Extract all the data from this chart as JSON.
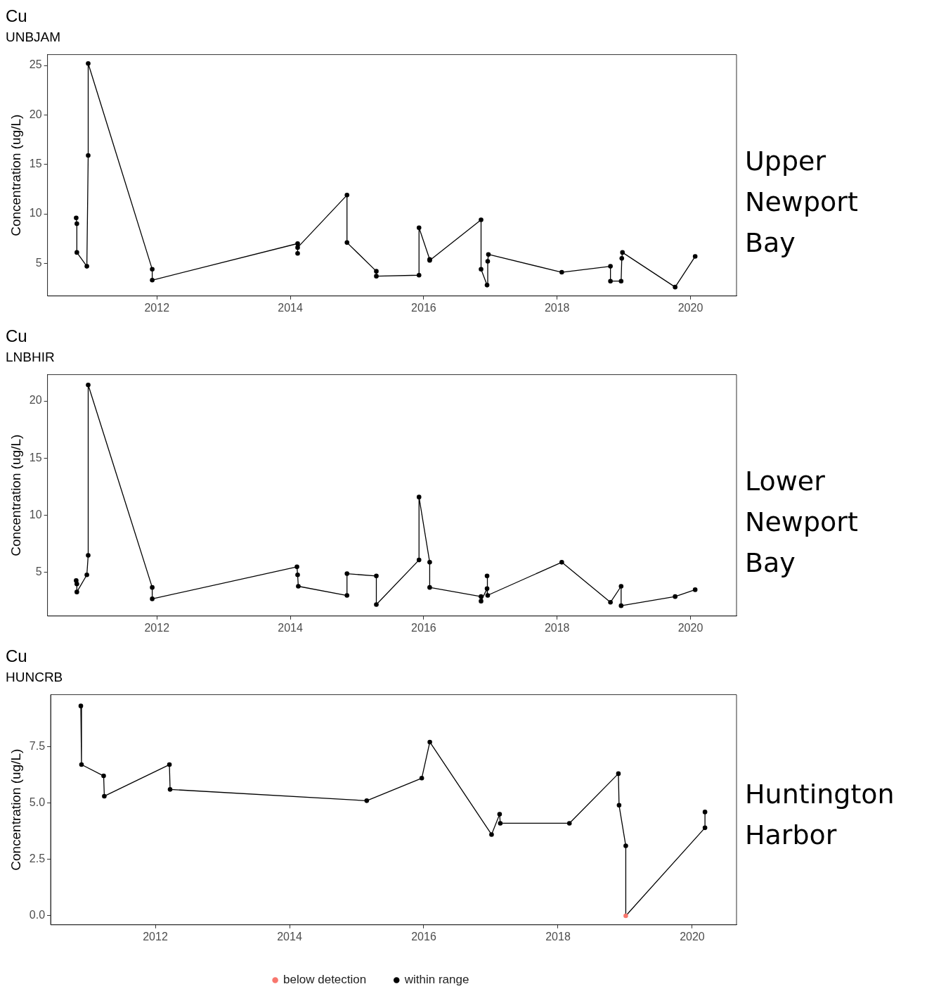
{
  "chart_data": [
    {
      "type": "line",
      "title": "Cu",
      "subtitle": "UNBJAM",
      "ylabel": "Concentration (ug/L)",
      "annotations": [
        "Upper Newport Bay"
      ],
      "xlim": [
        2010.36,
        2020.69
      ],
      "xticks": [
        2012,
        2014,
        2016,
        2018,
        2020
      ],
      "ylim": [
        1.7,
        26.1
      ],
      "yticks": [
        5,
        10,
        15,
        20,
        25
      ],
      "legend": false,
      "series": [
        {
          "type": "line",
          "color": "#000000",
          "marker": "none",
          "x": [
            2010.79,
            2010.8,
            2010.8,
            2010.95,
            2010.97,
            2010.97,
            2011.93,
            2011.93,
            2014.11,
            2014.11,
            2014.11,
            2014.85,
            2014.85,
            2015.29,
            2015.29,
            2015.93,
            2015.93,
            2016.09,
            2016.09,
            2016.86,
            2016.86,
            2016.95,
            2016.96,
            2016.97,
            2018.07,
            2018.8,
            2018.8,
            2018.96,
            2018.97,
            2018.98,
            2019.77,
            2020.07
          ],
          "values": [
            9.6,
            9.0,
            6.1,
            4.7,
            15.9,
            25.2,
            4.4,
            3.3,
            7.0,
            6.0,
            6.6,
            11.9,
            7.1,
            4.2,
            3.7,
            3.8,
            8.6,
            5.4,
            5.3,
            9.4,
            4.4,
            2.8,
            5.2,
            5.9,
            4.1,
            4.7,
            3.2,
            3.2,
            5.5,
            6.1,
            2.6,
            5.7
          ]
        },
        {
          "type": "scatter",
          "color": "#000000",
          "marker": "circle",
          "x": [
            2010.79,
            2010.8,
            2010.8,
            2010.95,
            2010.97,
            2010.97,
            2011.93,
            2011.93,
            2014.11,
            2014.11,
            2014.11,
            2014.85,
            2014.85,
            2015.29,
            2015.29,
            2015.93,
            2015.93,
            2016.09,
            2016.09,
            2016.86,
            2016.86,
            2016.95,
            2016.96,
            2016.97,
            2018.07,
            2018.8,
            2018.8,
            2018.96,
            2018.97,
            2018.98,
            2019.77,
            2020.07
          ],
          "values": [
            9.6,
            9.0,
            6.1,
            4.7,
            15.9,
            25.2,
            4.4,
            3.3,
            7.0,
            6.0,
            6.6,
            11.9,
            7.1,
            4.2,
            3.7,
            3.8,
            8.6,
            5.4,
            5.3,
            9.4,
            4.4,
            2.8,
            5.2,
            5.9,
            4.1,
            4.7,
            3.2,
            3.2,
            5.5,
            6.1,
            2.6,
            5.7
          ]
        }
      ]
    },
    {
      "type": "line",
      "title": "Cu",
      "subtitle": "LNBHIR",
      "ylabel": "Concentration (ug/L)",
      "annotations": [
        "Lower Newport Bay"
      ],
      "xlim": [
        2010.36,
        2020.69
      ],
      "xticks": [
        2012,
        2014,
        2016,
        2018,
        2020
      ],
      "ylim": [
        1.2,
        22.3
      ],
      "yticks": [
        5,
        10,
        15,
        20
      ],
      "legend": false,
      "series": [
        {
          "type": "line",
          "color": "#000000",
          "marker": "none",
          "x": [
            2010.79,
            2010.8,
            2010.8,
            2010.95,
            2010.97,
            2010.97,
            2011.93,
            2011.93,
            2014.1,
            2014.11,
            2014.12,
            2014.85,
            2014.85,
            2015.29,
            2015.29,
            2015.93,
            2015.93,
            2016.09,
            2016.09,
            2016.86,
            2016.86,
            2016.95,
            2016.95,
            2016.96,
            2018.07,
            2018.8,
            2018.96,
            2018.96,
            2019.77,
            2020.07
          ],
          "values": [
            4.3,
            4.0,
            3.3,
            4.8,
            6.5,
            21.4,
            3.7,
            2.7,
            5.5,
            4.8,
            3.8,
            3.0,
            4.9,
            4.7,
            2.2,
            6.1,
            11.6,
            5.9,
            3.7,
            2.9,
            2.5,
            3.6,
            4.7,
            3.0,
            5.9,
            2.4,
            3.8,
            2.1,
            2.9,
            3.5
          ]
        },
        {
          "type": "scatter",
          "color": "#000000",
          "marker": "circle",
          "x": [
            2010.79,
            2010.8,
            2010.8,
            2010.95,
            2010.97,
            2010.97,
            2011.93,
            2011.93,
            2014.1,
            2014.11,
            2014.12,
            2014.85,
            2014.85,
            2015.29,
            2015.29,
            2015.93,
            2015.93,
            2016.09,
            2016.09,
            2016.86,
            2016.86,
            2016.95,
            2016.95,
            2016.96,
            2018.07,
            2018.8,
            2018.96,
            2018.96,
            2019.77,
            2020.07
          ],
          "values": [
            4.3,
            4.0,
            3.3,
            4.8,
            6.5,
            21.4,
            3.7,
            2.7,
            5.5,
            4.8,
            3.8,
            3.0,
            4.9,
            4.7,
            2.2,
            6.1,
            11.6,
            5.9,
            3.7,
            2.9,
            2.5,
            3.6,
            4.7,
            3.0,
            5.9,
            2.4,
            3.8,
            2.1,
            2.9,
            3.5
          ]
        }
      ]
    },
    {
      "type": "line",
      "title": "Cu",
      "subtitle": "HUNCRB",
      "ylabel": "Concentration (ug/L)",
      "annotations": [
        "Huntington Harbor"
      ],
      "xlim": [
        2010.44,
        2020.66
      ],
      "xticks": [
        2012,
        2014,
        2016,
        2018,
        2020
      ],
      "ylim": [
        -0.4,
        9.8
      ],
      "yticks": [
        {
          "value": 0,
          "label": "0.0"
        },
        2.5,
        {
          "value": 5,
          "label": "5.0"
        },
        7.5
      ],
      "legend": "bottom",
      "series": [
        {
          "type": "line",
          "color": "#000000",
          "marker": "none",
          "x": [
            2010.89,
            2010.9,
            2011.23,
            2011.24,
            2012.21,
            2012.22,
            2015.15,
            2015.97,
            2016.09,
            2017.01,
            2017.13,
            2017.14,
            2018.17,
            2018.9,
            2018.91,
            2019.01,
            2019.01,
            2020.19,
            2020.19
          ],
          "values": [
            9.3,
            6.7,
            6.2,
            5.3,
            6.7,
            5.6,
            5.1,
            6.1,
            7.7,
            3.6,
            4.5,
            4.1,
            4.1,
            6.3,
            4.9,
            3.1,
            0,
            3.9,
            4.6
          ]
        },
        {
          "type": "scatter",
          "name": "below detection",
          "color": "#f8766d",
          "marker": "circle",
          "x": [
            2019.01
          ],
          "values": [
            0
          ]
        },
        {
          "type": "scatter",
          "name": "within range",
          "color": "#000000",
          "marker": "circle",
          "x": [
            2010.89,
            2010.9,
            2011.23,
            2011.24,
            2012.21,
            2012.22,
            2015.15,
            2015.97,
            2016.09,
            2017.01,
            2017.13,
            2017.14,
            2018.17,
            2018.9,
            2018.91,
            2019.01,
            2020.19,
            2020.19
          ],
          "values": [
            9.3,
            6.7,
            6.2,
            5.3,
            6.7,
            5.6,
            5.1,
            6.1,
            7.7,
            3.6,
            4.5,
            4.1,
            4.1,
            6.3,
            4.9,
            3.1,
            3.9,
            4.6
          ]
        }
      ]
    }
  ]
}
